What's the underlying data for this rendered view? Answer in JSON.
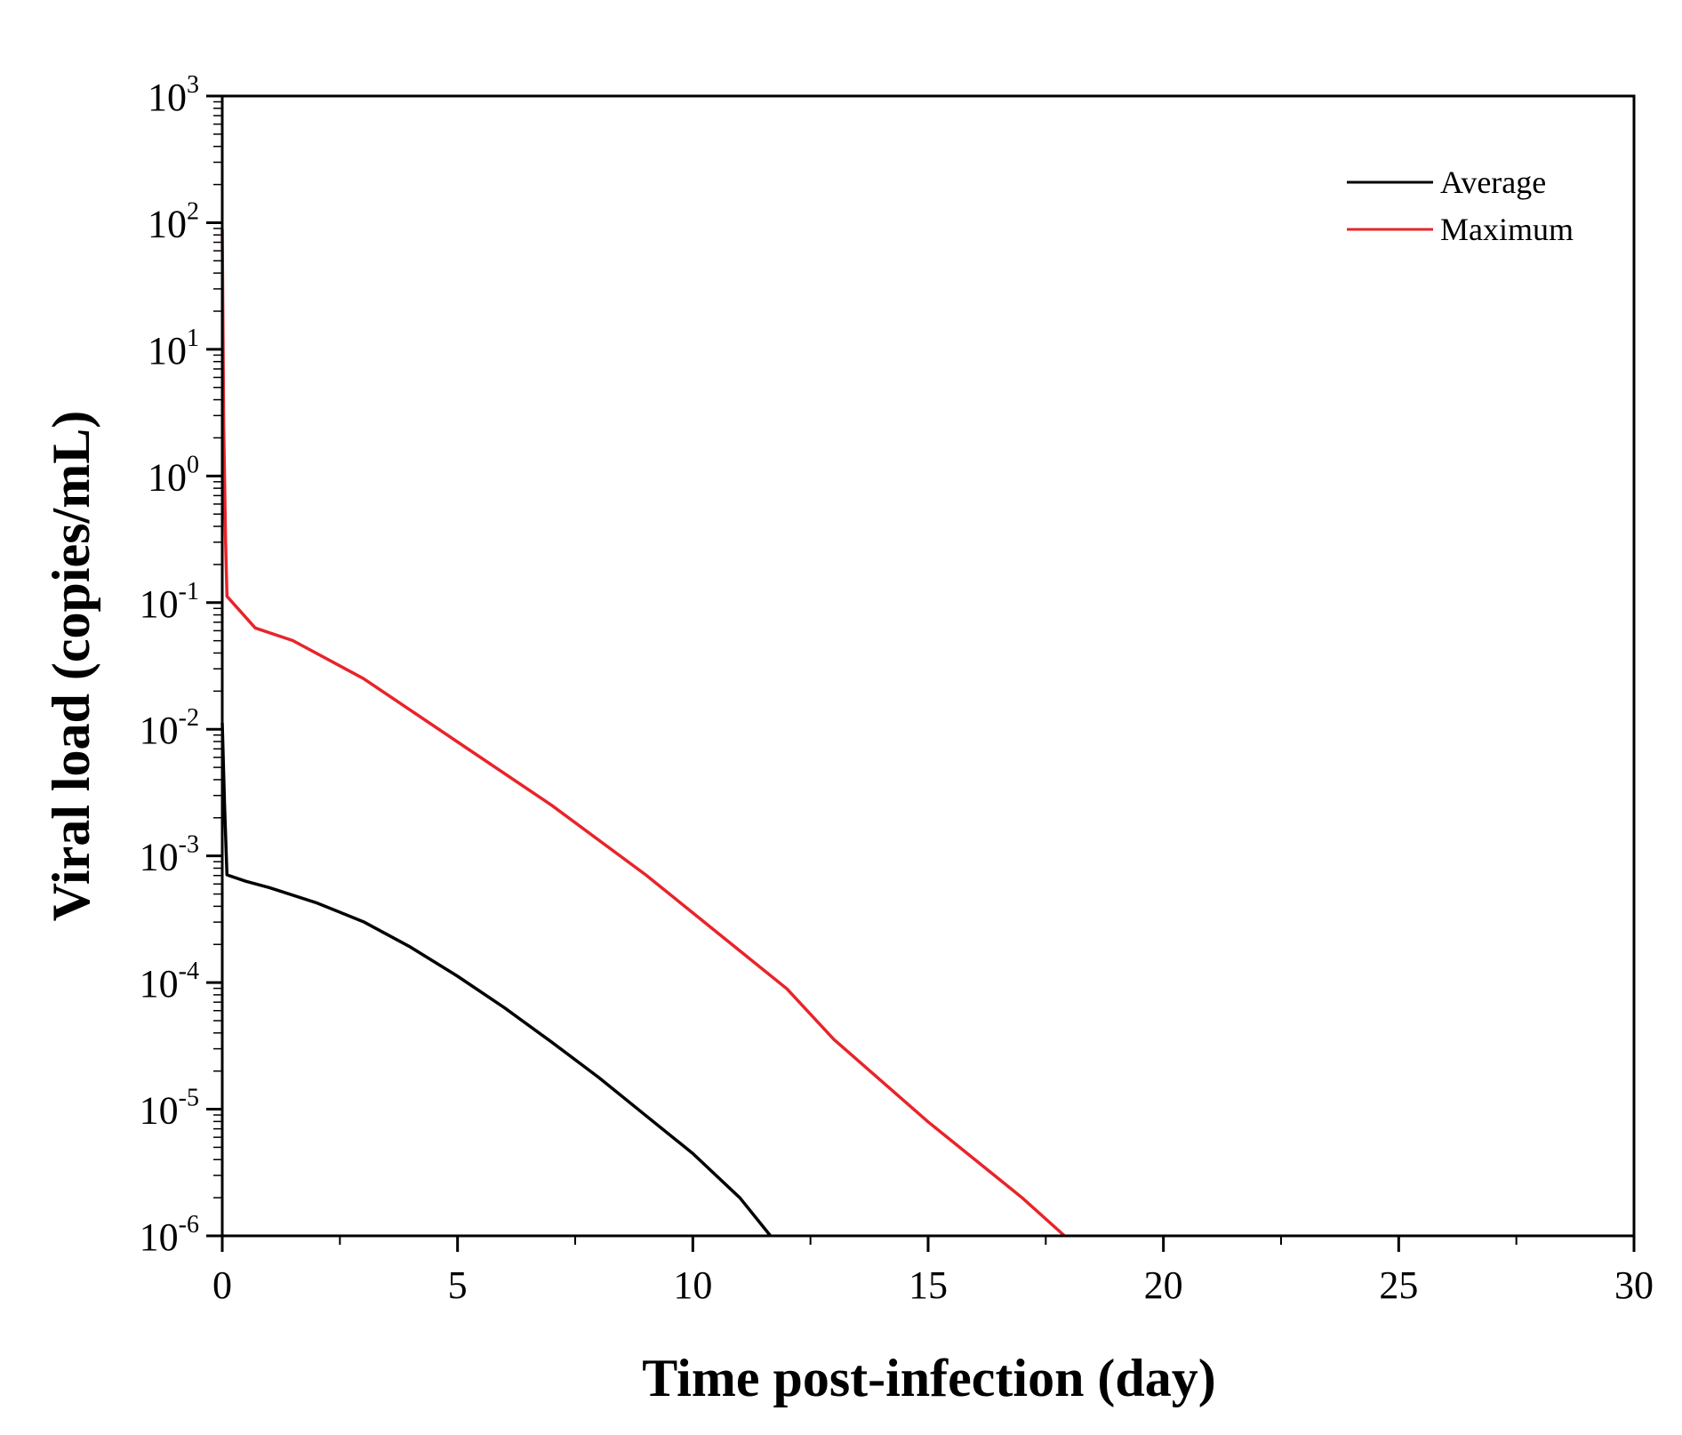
{
  "chart_data": {
    "type": "line",
    "title": "",
    "xlabel": "Time post-infection (day)",
    "ylabel": "Viral load (copies/mL)",
    "xlim": [
      0,
      30
    ],
    "ylim_log10": [
      -6,
      3
    ],
    "yscale": "log",
    "xticks": [
      0,
      5,
      10,
      15,
      20,
      25,
      30
    ],
    "xtick_labels": [
      "0",
      "5",
      "10",
      "15",
      "20",
      "25",
      "30"
    ],
    "yticks_exp": [
      3,
      2,
      1,
      0,
      -1,
      -2,
      -3,
      -4,
      -5,
      -6
    ],
    "ytick_labels": [
      {
        "base": "10",
        "exp": "3"
      },
      {
        "base": "10",
        "exp": "2"
      },
      {
        "base": "10",
        "exp": "1"
      },
      {
        "base": "10",
        "exp": "0"
      },
      {
        "base": "10",
        "exp": "-1"
      },
      {
        "base": "10",
        "exp": "-2"
      },
      {
        "base": "10",
        "exp": "-3"
      },
      {
        "base": "10",
        "exp": "-4"
      },
      {
        "base": "10",
        "exp": "-5"
      },
      {
        "base": "10",
        "exp": "-6"
      }
    ],
    "grid": false,
    "legend_position": "top-right",
    "series": [
      {
        "name": "Average",
        "color": "#000000",
        "points": [
          [
            0.0,
            -1.95
          ],
          [
            0.05,
            -2.6
          ],
          [
            0.1,
            -3.15
          ],
          [
            0.5,
            -3.2
          ],
          [
            1,
            -3.25
          ],
          [
            2,
            -3.37
          ],
          [
            3,
            -3.52
          ],
          [
            4,
            -3.72
          ],
          [
            5,
            -3.95
          ],
          [
            6,
            -4.2
          ],
          [
            7,
            -4.47
          ],
          [
            8,
            -4.75
          ],
          [
            9,
            -5.05
          ],
          [
            10,
            -5.35
          ],
          [
            11,
            -5.7
          ],
          [
            11.65,
            -6.0
          ]
        ]
      },
      {
        "name": "Maximum",
        "color": "#e8242a",
        "points": [
          [
            0.0,
            1.95
          ],
          [
            0.03,
            0.4
          ],
          [
            0.07,
            -0.5
          ],
          [
            0.1,
            -0.95
          ],
          [
            0.7,
            -1.2
          ],
          [
            1.5,
            -1.3
          ],
          [
            3,
            -1.6
          ],
          [
            5,
            -2.1
          ],
          [
            7,
            -2.6
          ],
          [
            9,
            -3.15
          ],
          [
            11,
            -3.75
          ],
          [
            12,
            -4.05
          ],
          [
            13,
            -4.45
          ],
          [
            15,
            -5.1
          ],
          [
            17,
            -5.7
          ],
          [
            17.9,
            -6.0
          ]
        ]
      }
    ]
  }
}
